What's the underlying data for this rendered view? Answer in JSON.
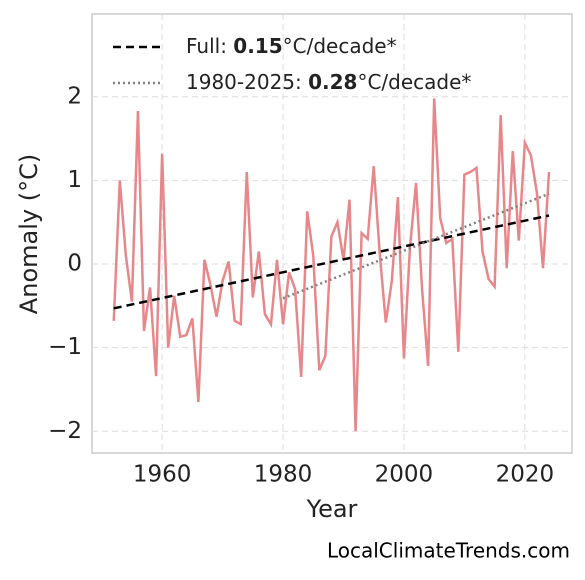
{
  "chart_data": {
    "type": "line",
    "xlabel": "Year",
    "ylabel": "Anomaly (°C)",
    "watermark": "LocalClimateTrends.com",
    "x": [
      1952,
      1953,
      1954,
      1955,
      1956,
      1957,
      1958,
      1959,
      1960,
      1961,
      1962,
      1963,
      1964,
      1965,
      1966,
      1967,
      1968,
      1969,
      1970,
      1971,
      1972,
      1973,
      1974,
      1975,
      1976,
      1977,
      1978,
      1979,
      1980,
      1981,
      1982,
      1983,
      1984,
      1985,
      1986,
      1987,
      1988,
      1989,
      1990,
      1991,
      1992,
      1993,
      1994,
      1995,
      1996,
      1997,
      1998,
      1999,
      2000,
      2001,
      2002,
      2003,
      2004,
      2005,
      2006,
      2007,
      2008,
      2009,
      2010,
      2011,
      2012,
      2013,
      2014,
      2015,
      2016,
      2017,
      2018,
      2019,
      2020,
      2021,
      2022,
      2023,
      2024
    ],
    "values": [
      -0.68,
      1.0,
      0.1,
      -0.45,
      1.83,
      -0.8,
      -0.28,
      -1.34,
      1.32,
      -1.0,
      -0.38,
      -0.87,
      -0.85,
      -0.65,
      -1.65,
      0.05,
      -0.25,
      -0.63,
      -0.2,
      0.03,
      -0.68,
      -0.72,
      1.1,
      -0.4,
      0.15,
      -0.6,
      -0.72,
      0.05,
      -0.72,
      -0.1,
      -0.3,
      -1.35,
      0.63,
      0.1,
      -1.27,
      -1.1,
      0.33,
      0.5,
      0.05,
      0.77,
      -2.0,
      0.37,
      0.3,
      1.17,
      0.12,
      -0.7,
      -0.2,
      0.8,
      -1.13,
      0.2,
      0.97,
      -0.3,
      -1.22,
      1.98,
      0.55,
      0.25,
      0.3,
      -1.05,
      1.07,
      1.1,
      1.15,
      0.15,
      -0.18,
      -0.27,
      1.78,
      -0.05,
      1.35,
      0.28,
      1.45,
      1.3,
      0.85,
      -0.05,
      1.1
    ],
    "color": "#e8878a",
    "trends": [
      {
        "name": "Full: 0.15°C/decade*",
        "color": "#000000",
        "style": "dashed",
        "x": [
          1952,
          2024
        ],
        "values": [
          -0.53,
          0.58
        ]
      },
      {
        "name": "1980-2025: 0.28°C/decade*",
        "color": "#808080",
        "style": "dotted",
        "x": [
          1980,
          2024
        ],
        "values": [
          -0.41,
          0.84
        ]
      }
    ],
    "xlim": [
      1948.4,
      2027.8
    ],
    "ylim": [
      -2.26,
      2.99
    ],
    "xticks": [
      1960,
      1980,
      2000,
      2020
    ],
    "yticks": [
      {
        "value": -2,
        "label": "−2"
      },
      {
        "value": -1,
        "label": "−1"
      },
      0,
      1,
      2
    ],
    "grid": true,
    "legend": "upper left"
  }
}
